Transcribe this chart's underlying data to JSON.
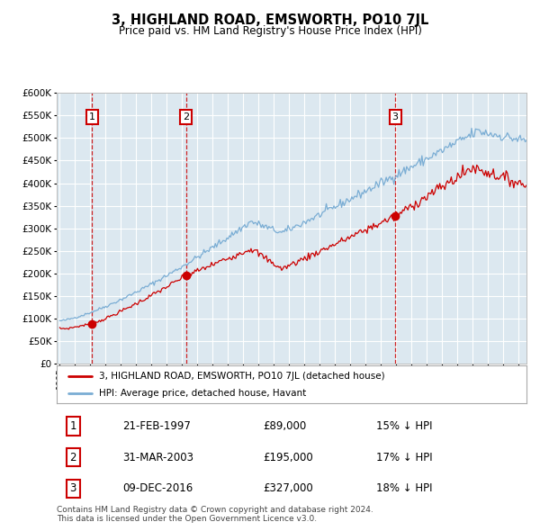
{
  "title": "3, HIGHLAND ROAD, EMSWORTH, PO10 7JL",
  "subtitle": "Price paid vs. HM Land Registry's House Price Index (HPI)",
  "title_fontsize": 10.5,
  "subtitle_fontsize": 8.5,
  "legend_line1": "3, HIGHLAND ROAD, EMSWORTH, PO10 7JL (detached house)",
  "legend_line2": "HPI: Average price, detached house, Havant",
  "sale1_date": "21-FEB-1997",
  "sale1_price": "£89,000",
  "sale1_hpi": "15% ↓ HPI",
  "sale1_year": 1997.12,
  "sale1_value": 89000,
  "sale2_date": "31-MAR-2003",
  "sale2_price": "£195,000",
  "sale2_hpi": "17% ↓ HPI",
  "sale2_year": 2003.25,
  "sale2_value": 195000,
  "sale3_date": "09-DEC-2016",
  "sale3_price": "£327,000",
  "sale3_hpi": "18% ↓ HPI",
  "sale3_year": 2016.92,
  "sale3_value": 327000,
  "footnote1": "Contains HM Land Registry data © Crown copyright and database right 2024.",
  "footnote2": "This data is licensed under the Open Government Licence v3.0.",
  "line_red_color": "#cc0000",
  "line_blue_color": "#7aadd4",
  "plot_bg_color": "#dce8f0",
  "grid_color": "#ffffff",
  "vline_color": "#cc0000",
  "sale_marker_color": "#cc0000",
  "box_edge_color": "#cc0000",
  "ylim_min": 0,
  "ylim_max": 600000,
  "x_start_year": 1995,
  "x_end_year": 2025
}
